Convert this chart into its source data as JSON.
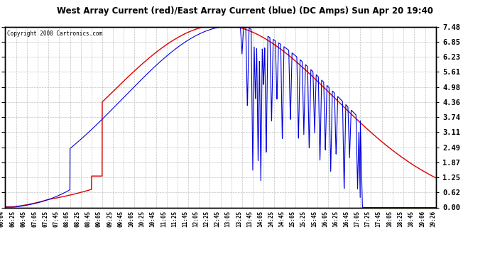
{
  "title": "West Array Current (red)/East Array Current (blue) (DC Amps) Sun Apr 20 19:40",
  "copyright": "Copyright 2008 Cartronics.com",
  "ylabel_right_ticks": [
    0.0,
    0.62,
    1.25,
    1.87,
    2.49,
    3.11,
    3.74,
    4.36,
    4.98,
    5.61,
    6.23,
    6.85,
    7.48
  ],
  "ymin": 0.0,
  "ymax": 7.48,
  "bg_color": "#ffffff",
  "plot_bg_color": "#ffffff",
  "grid_color": "#bbbbbb",
  "red_color": "#dd0000",
  "blue_color": "#0000dd",
  "title_bg": "#c8c8c8",
  "x_labels": [
    "06:04",
    "06:25",
    "06:45",
    "07:05",
    "07:25",
    "07:45",
    "08:05",
    "08:25",
    "08:45",
    "09:05",
    "09:25",
    "09:45",
    "10:05",
    "10:25",
    "10:45",
    "11:05",
    "11:25",
    "11:45",
    "12:05",
    "12:25",
    "12:45",
    "13:05",
    "13:25",
    "13:45",
    "14:05",
    "14:25",
    "14:45",
    "15:05",
    "15:25",
    "15:45",
    "16:05",
    "16:25",
    "16:45",
    "17:05",
    "17:25",
    "17:45",
    "18:05",
    "18:25",
    "18:45",
    "19:06",
    "19:26"
  ]
}
